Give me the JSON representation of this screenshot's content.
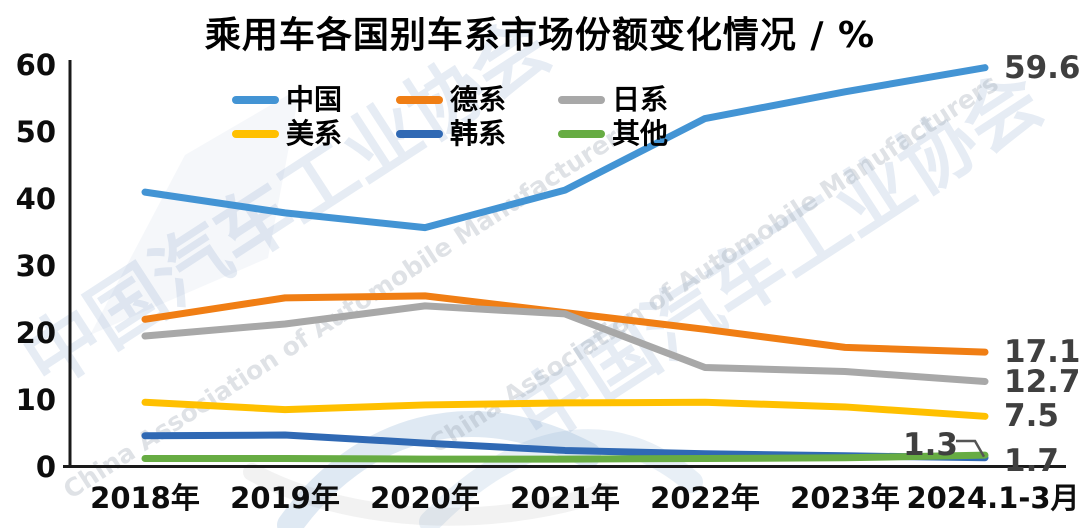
{
  "title": "乘用车各国别车系市场份额变化情况 / %",
  "watermark": {
    "cn": "中国汽车工业协会",
    "en": "China Association of Automobile Manufacturers"
  },
  "chart_data": {
    "type": "line",
    "title": "乘用车各国别车系市场份额变化情况 / %",
    "unit": "%",
    "categories": [
      "2018年",
      "2019年",
      "2020年",
      "2021年",
      "2022年",
      "2023年",
      "2024.1-3月"
    ],
    "xlabel": "",
    "ylabel": "",
    "ylim": [
      0,
      60
    ],
    "yticks": [
      0,
      10,
      20,
      30,
      40,
      50,
      60
    ],
    "grid": false,
    "legend_position": "top",
    "series": [
      {
        "key": "china",
        "name": "中国",
        "color": "#4394D4",
        "values": [
          41.0,
          37.9,
          35.7,
          41.3,
          52.0,
          56.0,
          59.6
        ],
        "end_label": "59.6",
        "callout": false
      },
      {
        "key": "germany",
        "name": "德系",
        "color": "#F07E14",
        "values": [
          22.0,
          25.2,
          25.5,
          23.0,
          20.5,
          17.8,
          17.1
        ],
        "end_label": "17.1",
        "callout": false
      },
      {
        "key": "japan",
        "name": "日系",
        "color": "#A8A8A8",
        "values": [
          19.5,
          21.3,
          24.0,
          22.8,
          14.8,
          14.2,
          12.7
        ],
        "end_label": "12.7",
        "callout": false
      },
      {
        "key": "usa",
        "name": "美系",
        "color": "#FFC000",
        "values": [
          9.6,
          8.5,
          9.2,
          9.5,
          9.6,
          8.9,
          7.5
        ],
        "end_label": "7.5",
        "callout": false
      },
      {
        "key": "korea",
        "name": "韩系",
        "color": "#3069B4",
        "values": [
          4.6,
          4.7,
          3.5,
          2.4,
          1.9,
          1.6,
          1.3
        ],
        "end_label": "1.3",
        "callout": true
      },
      {
        "key": "other",
        "name": "其他",
        "color": "#67AC43",
        "values": [
          1.2,
          1.2,
          1.1,
          1.1,
          1.2,
          1.3,
          1.7
        ],
        "end_label": "1.7",
        "callout": false
      }
    ]
  }
}
